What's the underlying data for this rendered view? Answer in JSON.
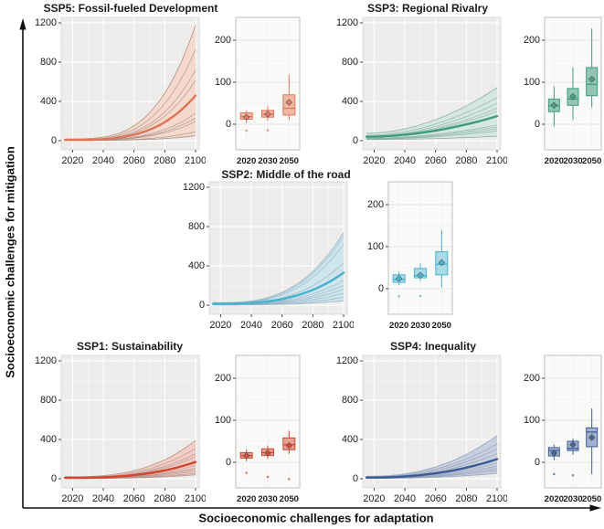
{
  "figure": {
    "y_axis_label": "Socioeconomic challenges for mitigation",
    "x_axis_label": "Socioeconomic challenges for adaptation",
    "background": "#ffffff",
    "axis_arrow_color": "#111111"
  },
  "chart_data": [
    {
      "id": "ssp5",
      "title": "SSP5: Fossil-fueled Development",
      "type": "line",
      "colors": {
        "main": "#E0745B",
        "band": "#F4D7C9",
        "thin": "#A3897F",
        "box_fill": "#F1B49E"
      },
      "line_chart": {
        "type": "area",
        "x_tick_labels": [
          "2020",
          "2040",
          "2060",
          "2080",
          "2100"
        ],
        "x_tick_years": [
          2020,
          2040,
          2060,
          2080,
          2100
        ],
        "y_ticks": [
          0,
          400,
          800,
          1200
        ],
        "x_range_years": [
          2015,
          2100
        ],
        "ylim": [
          -90,
          1280
        ],
        "curve_power": 3.4,
        "band": {
          "start": [
            3,
            18
          ],
          "end": [
            50,
            1180
          ]
        },
        "median": {
          "start": 8,
          "end": 460
        },
        "members": [
          [
            10,
            930
          ],
          [
            8,
            720
          ],
          [
            7,
            615
          ],
          [
            6,
            470
          ],
          [
            5,
            280
          ],
          [
            5,
            230
          ],
          [
            4,
            195
          ],
          [
            3,
            90
          ]
        ]
      },
      "box_chart": {
        "type": "box",
        "categories": [
          "2020",
          "2030",
          "2050"
        ],
        "y_ticks": [
          0,
          100,
          200
        ],
        "ylim": [
          -60,
          255
        ],
        "boxes": [
          {
            "lo": 3,
            "q1": 12,
            "med": 18,
            "q3": 27,
            "hi": 33,
            "mean": 17,
            "outliers": [
              -15
            ]
          },
          {
            "lo": 8,
            "q1": 17,
            "med": 24,
            "q3": 33,
            "hi": 44,
            "mean": 24,
            "outliers": [
              -14
            ]
          },
          {
            "lo": 10,
            "q1": 22,
            "med": 38,
            "q3": 70,
            "hi": 118,
            "mean": 52,
            "outliers": []
          }
        ]
      }
    },
    {
      "id": "ssp3",
      "title": "SSP3: Regional Rivalry",
      "type": "line",
      "colors": {
        "main": "#3E9C7C",
        "band": "#D3E7DF",
        "thin": "#85AC9D",
        "box_fill": "#8CC3AE"
      },
      "line_chart": {
        "type": "area",
        "x_tick_labels": [
          "2020",
          "2040",
          "2060",
          "2080",
          "2100"
        ],
        "x_tick_years": [
          2020,
          2040,
          2060,
          2080,
          2100
        ],
        "y_ticks": [
          0,
          400,
          800,
          1200
        ],
        "x_range_years": [
          2015,
          2100
        ],
        "ylim": [
          -90,
          1280
        ],
        "curve_power": 1.9,
        "band": {
          "start": [
            12,
            75
          ],
          "end": [
            45,
            540
          ]
        },
        "median": {
          "start": 40,
          "end": 250
        },
        "members": [
          [
            55,
            440
          ],
          [
            45,
            380
          ],
          [
            40,
            330
          ],
          [
            35,
            300
          ],
          [
            25,
            160
          ],
          [
            22,
            140
          ],
          [
            18,
            120
          ],
          [
            15,
            100
          ]
        ]
      },
      "box_chart": {
        "type": "box",
        "categories": [
          "2020",
          "2030",
          "2050"
        ],
        "y_ticks": [
          0,
          100,
          200
        ],
        "ylim": [
          -60,
          255
        ],
        "boxes": [
          {
            "lo": -5,
            "q1": 30,
            "med": 44,
            "q3": 60,
            "hi": 90,
            "mean": 45,
            "outliers": []
          },
          {
            "lo": 10,
            "q1": 45,
            "med": 60,
            "q3": 85,
            "hi": 135,
            "mean": 66,
            "outliers": []
          },
          {
            "lo": 40,
            "q1": 68,
            "med": 95,
            "q3": 135,
            "hi": 228,
            "mean": 107,
            "outliers": []
          }
        ]
      }
    },
    {
      "id": "ssp2",
      "title": "SSP2: Middle of the road",
      "type": "line",
      "colors": {
        "main": "#45B2D2",
        "band": "#CAE4EE",
        "thin": "#93AEBC",
        "box_fill": "#A6D7E4"
      },
      "line_chart": {
        "type": "area",
        "x_tick_labels": [
          "2020",
          "2040",
          "2060",
          "2080",
          "2100"
        ],
        "x_tick_years": [
          2020,
          2040,
          2060,
          2080,
          2100
        ],
        "y_ticks": [
          0,
          400,
          800,
          1200
        ],
        "x_range_years": [
          2015,
          2100
        ],
        "ylim": [
          -90,
          1280
        ],
        "curve_power": 3.0,
        "band": {
          "start": [
            2,
            25
          ],
          "end": [
            45,
            740
          ]
        },
        "median": {
          "start": 15,
          "end": 330
        },
        "members": [
          [
            18,
            700
          ],
          [
            15,
            620
          ],
          [
            12,
            430
          ],
          [
            8,
            250
          ],
          [
            7,
            200
          ],
          [
            5,
            160
          ],
          [
            4,
            120
          ],
          [
            3,
            80
          ]
        ]
      },
      "box_chart": {
        "type": "box",
        "categories": [
          "2020",
          "2030",
          "2050"
        ],
        "y_ticks": [
          0,
          100,
          200
        ],
        "ylim": [
          -60,
          255
        ],
        "boxes": [
          {
            "lo": 8,
            "q1": 15,
            "med": 22,
            "q3": 33,
            "hi": 40,
            "mean": 24,
            "outliers": [
              -18
            ]
          },
          {
            "lo": 18,
            "q1": 26,
            "med": 31,
            "q3": 48,
            "hi": 60,
            "mean": 32,
            "outliers": [
              -17
            ]
          },
          {
            "lo": 3,
            "q1": 33,
            "med": 58,
            "q3": 88,
            "hi": 140,
            "mean": 62,
            "outliers": []
          }
        ]
      }
    },
    {
      "id": "ssp1",
      "title": "SSP1: Sustainability",
      "type": "line",
      "colors": {
        "main": "#D2452F",
        "band": "#F2C9C1",
        "thin": "#AE8E86",
        "box_fill": "#E89B88"
      },
      "line_chart": {
        "type": "area",
        "x_tick_labels": [
          "2020",
          "2040",
          "2060",
          "2080",
          "2100"
        ],
        "x_tick_years": [
          2020,
          2040,
          2060,
          2080,
          2100
        ],
        "y_ticks": [
          0,
          400,
          800,
          1200
        ],
        "x_range_years": [
          2015,
          2100
        ],
        "ylim": [
          -90,
          1280
        ],
        "curve_power": 2.8,
        "band": {
          "start": [
            2,
            20
          ],
          "end": [
            40,
            390
          ]
        },
        "median": {
          "start": 10,
          "end": 170
        },
        "members": [
          [
            14,
            310
          ],
          [
            12,
            255
          ],
          [
            10,
            225
          ],
          [
            8,
            135
          ],
          [
            6,
            110
          ],
          [
            5,
            95
          ],
          [
            4,
            75
          ],
          [
            3,
            55
          ]
        ]
      },
      "box_chart": {
        "type": "box",
        "categories": [
          "2020",
          "2030",
          "2050"
        ],
        "y_ticks": [
          0,
          100,
          200
        ],
        "ylim": [
          -60,
          255
        ],
        "boxes": [
          {
            "lo": 3,
            "q1": 10,
            "med": 16,
            "q3": 23,
            "hi": 30,
            "mean": 16,
            "outliers": [
              -25
            ]
          },
          {
            "lo": 8,
            "q1": 16,
            "med": 23,
            "q3": 32,
            "hi": 40,
            "mean": 22,
            "outliers": [
              -35
            ]
          },
          {
            "lo": 20,
            "q1": 30,
            "med": 42,
            "q3": 58,
            "hi": 75,
            "mean": 40,
            "outliers": [
              -40
            ]
          }
        ]
      }
    },
    {
      "id": "ssp4",
      "title": "SSP4: Inequality",
      "type": "line",
      "colors": {
        "main": "#3C5C95",
        "band": "#C3CCDD",
        "thin": "#8E9CB4",
        "box_fill": "#9DADCB"
      },
      "line_chart": {
        "type": "area",
        "x_tick_labels": [
          "2020",
          "2040",
          "2060",
          "2080",
          "2100"
        ],
        "x_tick_years": [
          2020,
          2040,
          2060,
          2080,
          2100
        ],
        "y_ticks": [
          0,
          400,
          800,
          1200
        ],
        "x_range_years": [
          2015,
          2100
        ],
        "ylim": [
          -90,
          1280
        ],
        "curve_power": 2.3,
        "band": {
          "start": [
            3,
            25
          ],
          "end": [
            55,
            440
          ]
        },
        "median": {
          "start": 12,
          "end": 200
        },
        "members": [
          [
            20,
            355
          ],
          [
            16,
            305
          ],
          [
            14,
            255
          ],
          [
            10,
            160
          ],
          [
            8,
            130
          ],
          [
            6,
            105
          ],
          [
            5,
            85
          ]
        ]
      },
      "box_chart": {
        "type": "box",
        "categories": [
          "2020",
          "2030",
          "2050"
        ],
        "y_ticks": [
          0,
          100,
          200
        ],
        "ylim": [
          -60,
          255
        ],
        "boxes": [
          {
            "lo": 6,
            "q1": 15,
            "med": 28,
            "q3": 35,
            "hi": 42,
            "mean": 22,
            "outliers": [
              -28
            ]
          },
          {
            "lo": 18,
            "q1": 28,
            "med": 33,
            "q3": 50,
            "hi": 57,
            "mean": 42,
            "outliers": [
              -31
            ]
          },
          {
            "lo": -28,
            "q1": 37,
            "med": 72,
            "q3": 82,
            "hi": 128,
            "mean": 59,
            "outliers": []
          }
        ]
      }
    }
  ]
}
